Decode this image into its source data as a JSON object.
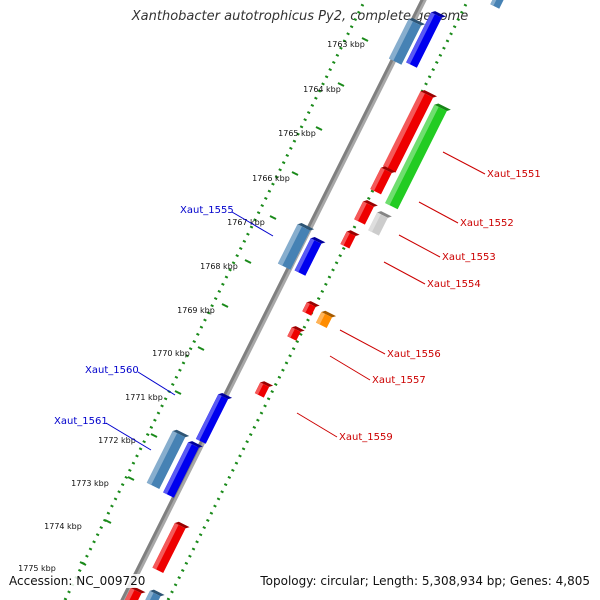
{
  "title": "Xanthobacter autotrophicus Py2, complete genome",
  "footer": {
    "accession": "Accession: NC_009720",
    "topology": "Topology: circular; Length: 5,308,934 bp; Genes: 4,805"
  },
  "colors": {
    "forward_cds": "#0000ee",
    "forward_other": "#4682b4",
    "reverse_cds": "#ee0000",
    "reverse_green": "#22cc22",
    "orange_feature": "#ff8c00",
    "grey_feature": "#cccccc",
    "backbone": "#808080",
    "tick_dots": "#1a8a1a",
    "forward_label": "#0000cc",
    "reverse_label": "#cc0000"
  },
  "scale_labels": [
    "1763 kbp",
    "1764 kbp",
    "1765 kbp",
    "1766 kbp",
    "1767 kbp",
    "1768 kbp",
    "1769 kbp",
    "1770 kbp",
    "1771 kbp",
    "1772 kbp",
    "1773 kbp",
    "1774 kbp",
    "1775 kbp"
  ],
  "forward_labels": [
    "Xaut_1555",
    "Xaut_1560",
    "Xaut_1561"
  ],
  "reverse_labels": [
    "Xaut_1551",
    "Xaut_1552",
    "Xaut_1553",
    "Xaut_1554",
    "Xaut_1556",
    "Xaut_1557",
    "Xaut_1559"
  ]
}
